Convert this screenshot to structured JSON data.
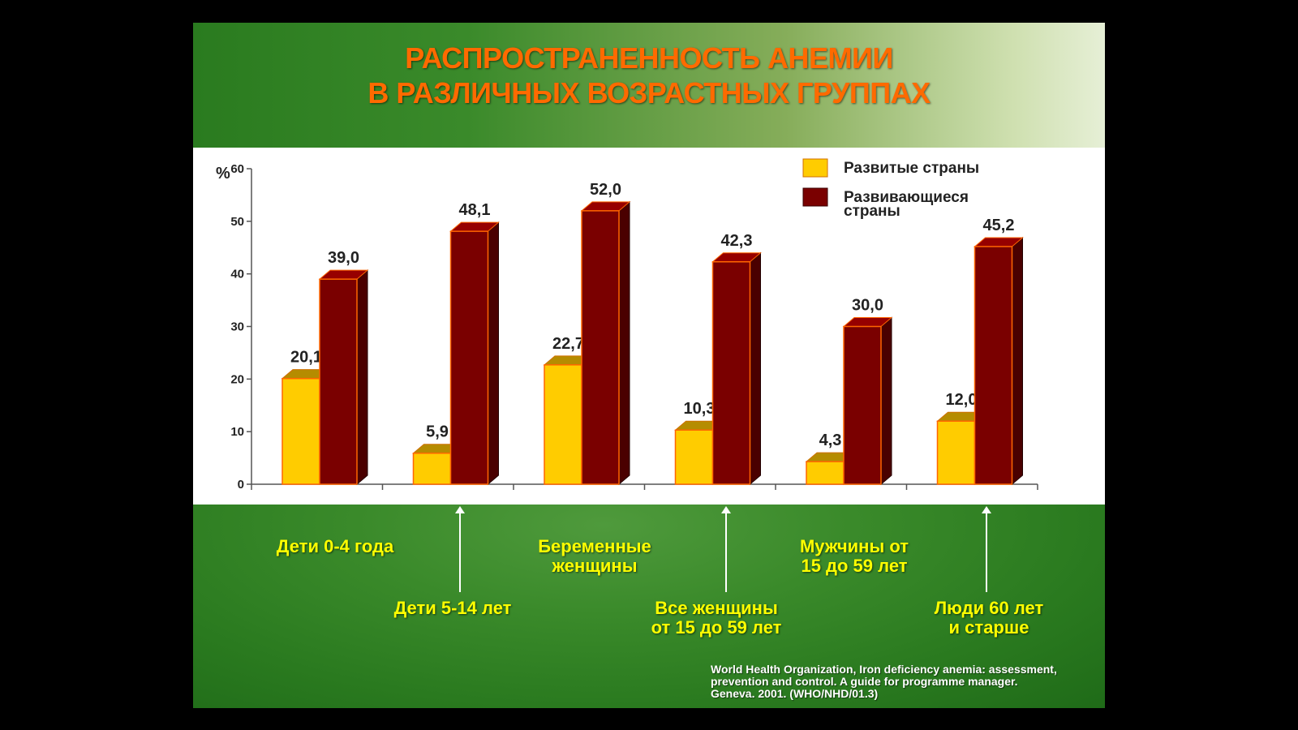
{
  "slide": {
    "title_lines": [
      "РАСПРОСТРАНЕННОСТЬ АНЕМИИ",
      "В РАЗЛИЧНЫХ ВОЗРАСТНЫХ ГРУППАХ"
    ],
    "source_lines": [
      "World Health Organization, Iron deficiency anemia: assessment,",
      "prevention and control. A guide for programme manager.",
      "Geneva. 2001. (WHO/NHD/01.3)"
    ],
    "colors": {
      "title": "#ff6a00",
      "labels": "#ffff00",
      "header_green": "#2a7b1f"
    }
  },
  "category_labels": {
    "c0": [
      "Дети 0-4 года"
    ],
    "c1": [
      "Дети 5-14 лет"
    ],
    "c2": [
      "Беременные",
      "женщины"
    ],
    "c3": [
      "Все женщины",
      "от 15 до 59 лет"
    ],
    "c4": [
      "Мужчины от",
      "15 до 59 лет"
    ],
    "c5": [
      "Люди 60 лет",
      "и старше"
    ]
  },
  "chart_data": {
    "type": "bar",
    "categories": [
      "Дети 0-4 года",
      "Дети 5-14 лет",
      "Беременные женщины",
      "Все женщины от 15 до 59 лет",
      "Мужчины от 15 до 59 лет",
      "Люди 60 лет и старше"
    ],
    "series": [
      {
        "name": "Развитые страны",
        "values": [
          20.1,
          5.9,
          22.7,
          10.3,
          4.3,
          12.0
        ],
        "labels": [
          "20,1",
          "5,9",
          "22,7",
          "10,3",
          "4,3",
          "12,0"
        ],
        "color": "#ffcc00"
      },
      {
        "name": "Развивающиеся страны",
        "legend_lines": [
          "Развивающиеся",
          "страны"
        ],
        "values": [
          39.0,
          48.1,
          52.0,
          42.3,
          30.0,
          45.2
        ],
        "labels": [
          "39,0",
          "48,1",
          "52,0",
          "42,3",
          "30,0",
          "45,2"
        ],
        "color": "#7a0000"
      }
    ],
    "ylabel": "%",
    "ylim": [
      0,
      60
    ],
    "yticks": [
      0,
      10,
      20,
      30,
      40,
      50,
      60
    ],
    "style_3d": true,
    "legend": "top-right",
    "grid": false
  }
}
